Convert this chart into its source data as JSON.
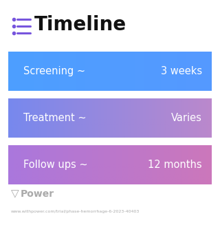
{
  "title": "Timeline",
  "title_fontsize": 20,
  "title_color": "#111111",
  "icon_color": "#7755dd",
  "background_color": "#ffffff",
  "rows": [
    {
      "label": "Screening ~",
      "value": "3 weeks",
      "color_left": "#4d9fff",
      "color_right": "#5599ff"
    },
    {
      "label": "Treatment ~",
      "value": "Varies",
      "color_left": "#7788ee",
      "color_right": "#bb88cc"
    },
    {
      "label": "Follow ups ~",
      "value": "12 months",
      "color_left": "#aa77dd",
      "color_right": "#cc77bb"
    }
  ],
  "footer_logo": "Power",
  "footer_url": "www.withpower.com/trial/phase-hemorrhage-6-2023-40403",
  "footer_color": "#aaaaaa",
  "row_text_color": "#ffffff",
  "row_fontsize": 10.5
}
